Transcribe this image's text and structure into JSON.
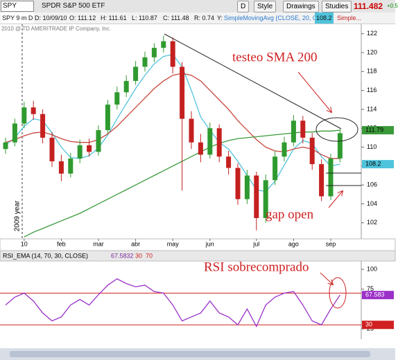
{
  "toolbar": {
    "symbol": "SPY",
    "description": "SPDR S&P 500 ETF",
    "period": "D",
    "buttons": [
      "Style",
      "Drawings",
      "Studies"
    ],
    "last": "111.482",
    "change": "+0.5"
  },
  "info": {
    "tab": "SPY 9 m D",
    "date": "D: 10/09/10",
    "open": "O: 111.12",
    "high": "H: 111.61",
    "low": "L: 110.87",
    "close": "C: 111.48",
    "range": "R: 0.74",
    "y": "Y:",
    "more": "Simple..."
  },
  "copyright": "2010 @ TD AMERITRADE IP Company, Inc.",
  "chart_data": [
    {
      "type": "candlestick",
      "categories": [
        null,
        null,
        "10",
        null,
        null,
        null,
        "feb",
        null,
        null,
        null,
        "mar",
        null,
        null,
        null,
        "abr",
        null,
        null,
        null,
        "may",
        null,
        null,
        null,
        "jun",
        null,
        null,
        null,
        null,
        "jul",
        null,
        null,
        null,
        "ago",
        null,
        null,
        null,
        "sep",
        null
      ],
      "open": [
        109.8,
        110.5,
        112.5,
        114.2,
        113.5,
        111.0,
        108.5,
        107.2,
        108.8,
        110.2,
        109.5,
        111.8,
        114.5,
        115.8,
        117.0,
        118.5,
        119.5,
        120.5,
        121.2,
        118.5,
        113.0,
        110.5,
        109.2,
        112.0,
        109.0,
        107.8,
        104.5,
        107.0,
        102.5,
        106.5,
        109.0,
        110.5,
        112.8,
        111.0,
        108.2,
        104.8,
        108.8
      ],
      "high": [
        111.0,
        113.0,
        114.8,
        114.9,
        114.0,
        111.6,
        109.2,
        109.4,
        110.8,
        110.9,
        112.3,
        115.0,
        116.4,
        117.6,
        119.1,
        120.1,
        121.0,
        121.8,
        121.6,
        119.0,
        113.8,
        111.4,
        112.6,
        112.4,
        109.6,
        108.3,
        107.6,
        107.4,
        107.1,
        109.6,
        111.1,
        113.4,
        113.3,
        111.5,
        108.7,
        109.3,
        111.9
      ],
      "low": [
        109.3,
        110.1,
        112.0,
        112.9,
        110.4,
        107.9,
        106.4,
        106.8,
        108.3,
        109.0,
        109.1,
        111.4,
        114.0,
        115.3,
        116.6,
        118.0,
        119.0,
        120.0,
        117.8,
        105.4,
        109.8,
        108.4,
        108.8,
        108.4,
        107.1,
        103.9,
        104.0,
        101.2,
        102.0,
        106.0,
        108.5,
        110.1,
        110.4,
        107.6,
        104.3,
        104.4,
        108.4
      ],
      "close": [
        110.5,
        112.5,
        114.2,
        113.5,
        111.0,
        108.5,
        107.2,
        108.8,
        110.2,
        109.5,
        111.8,
        114.5,
        115.8,
        117.0,
        118.5,
        119.5,
        120.5,
        121.2,
        118.5,
        113.0,
        110.5,
        109.2,
        112.0,
        109.0,
        107.8,
        104.5,
        107.0,
        102.5,
        106.5,
        109.0,
        110.5,
        112.8,
        111.0,
        108.2,
        104.8,
        108.8,
        111.48
      ],
      "up_color": "#2f9a2f",
      "down_color": "#c42020",
      "series": [
        {
          "name": "SimpleMovingAvg (CLOSE, 20, 0)",
          "color": "#4fc3dc",
          "values": [
            110.2,
            111.0,
            112.2,
            113.0,
            112.8,
            111.5,
            110.0,
            108.9,
            108.8,
            109.1,
            109.9,
            111.3,
            113.0,
            114.6,
            116.2,
            117.6,
            118.8,
            119.6,
            119.8,
            118.5,
            116.0,
            113.2,
            111.8,
            110.5,
            109.8,
            108.5,
            107.0,
            105.5,
            105.3,
            106.4,
            108.1,
            109.8,
            110.7,
            110.4,
            109.0,
            108.0,
            108.2
          ]
        },
        {
          "color": "#c8463c",
          "values": [
            110.5,
            110.8,
            111.2,
            111.5,
            111.6,
            111.3,
            110.9,
            110.6,
            110.5,
            110.5,
            110.8,
            111.4,
            112.2,
            113.2,
            114.2,
            115.2,
            116.2,
            117.0,
            117.6,
            117.8,
            117.6,
            117.0,
            116.0,
            115.0,
            114.0,
            112.8,
            111.8,
            110.8,
            110.0,
            109.6,
            109.5,
            109.8,
            110.0,
            109.8,
            109.2,
            108.8,
            108.8
          ]
        },
        {
          "color": "#3a9a3a",
          "values": [
            null,
            null,
            100.5,
            101.0,
            101.4,
            101.8,
            102.2,
            102.6,
            103.0,
            103.5,
            104.0,
            104.5,
            105.0,
            105.5,
            106.0,
            106.5,
            107.0,
            107.5,
            108.0,
            108.5,
            109.0,
            109.5,
            110.0,
            110.4,
            110.7,
            110.9,
            111.0,
            111.1,
            111.2,
            111.3,
            111.4,
            111.5,
            111.6,
            111.6,
            111.7,
            111.7,
            111.79
          ]
        }
      ],
      "ylim": [
        100.3,
        123.0
      ],
      "yticks": [
        102,
        104,
        106,
        108,
        110,
        112,
        114,
        116,
        118,
        120,
        122
      ],
      "annotations": [
        "testeo SMA 200",
        "gap open",
        "2009 year"
      ]
    },
    {
      "type": "line",
      "title": "RSI_EMA (14, 70, 30, CLOSE)",
      "series": [
        {
          "color": "#9b30c8",
          "values": [
            55,
            65,
            70,
            60,
            45,
            35,
            40,
            55,
            62,
            55,
            68,
            80,
            88,
            82,
            78,
            80,
            72,
            70,
            55,
            35,
            40,
            45,
            60,
            45,
            40,
            30,
            50,
            28,
            55,
            65,
            70,
            72,
            55,
            35,
            30,
            50,
            67.5832
          ]
        }
      ],
      "last_value_label": "67.583",
      "hlines": [
        70,
        30
      ],
      "hline_color": "#d02020",
      "ylim": [
        11.9,
        109.6
      ],
      "yticks": [
        25,
        75,
        100
      ],
      "annotations": [
        "RSI sobrecomprado"
      ]
    }
  ]
}
